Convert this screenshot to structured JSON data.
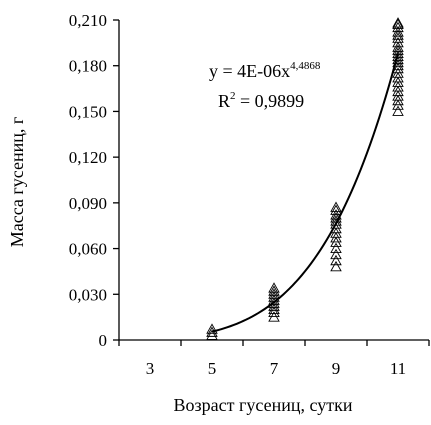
{
  "chart_data": {
    "type": "scatter",
    "title": "",
    "xlabel": "Возраст гусениц, сутки",
    "ylabel": "Масса гусениц, г",
    "xlim": [
      2,
      12
    ],
    "ylim": [
      0,
      0.21
    ],
    "x_ticks": [
      3,
      5,
      7,
      9,
      11
    ],
    "x_tick_labels": [
      "3",
      "5",
      "7",
      "9",
      "11"
    ],
    "y_ticks": [
      0,
      0.03,
      0.06,
      0.09,
      0.12,
      0.15,
      0.18,
      0.21
    ],
    "y_tick_labels": [
      "0",
      "0,030",
      "0,060",
      "0,090",
      "0,120",
      "0,150",
      "0,180",
      "0,210"
    ],
    "grid": false,
    "marker": "triangle",
    "series": [
      {
        "x": [
          5,
          5,
          5,
          7,
          7,
          7,
          7,
          7,
          7,
          7,
          7,
          7,
          7,
          9,
          9,
          9,
          9,
          9,
          9,
          9,
          9,
          9,
          9,
          9,
          9,
          9,
          9,
          11,
          11,
          11,
          11,
          11,
          11,
          11,
          11,
          11,
          11,
          11,
          11,
          11,
          11,
          11,
          11,
          11,
          11,
          11,
          11,
          11,
          11,
          11,
          11
        ],
        "y": [
          0.003,
          0.005,
          0.007,
          0.015,
          0.018,
          0.02,
          0.022,
          0.024,
          0.026,
          0.028,
          0.03,
          0.032,
          0.034,
          0.048,
          0.052,
          0.056,
          0.06,
          0.064,
          0.067,
          0.07,
          0.073,
          0.076,
          0.078,
          0.08,
          0.082,
          0.085,
          0.087,
          0.15,
          0.154,
          0.157,
          0.16,
          0.163,
          0.166,
          0.169,
          0.172,
          0.175,
          0.178,
          0.18,
          0.182,
          0.184,
          0.186,
          0.188,
          0.19,
          0.192,
          0.195,
          0.198,
          0.2,
          0.202,
          0.205,
          0.207,
          0.208
        ]
      }
    ],
    "trendline": {
      "type": "power",
      "coefficient": 4e-06,
      "exponent": 4.4868,
      "x_range": [
        5,
        11
      ]
    },
    "annotations": {
      "equation_base": "y = 4E-06x",
      "equation_exponent": "4,4868",
      "r2_prefix": "R",
      "r2_power": "2",
      "r2_value": " = 0,9899"
    }
  }
}
